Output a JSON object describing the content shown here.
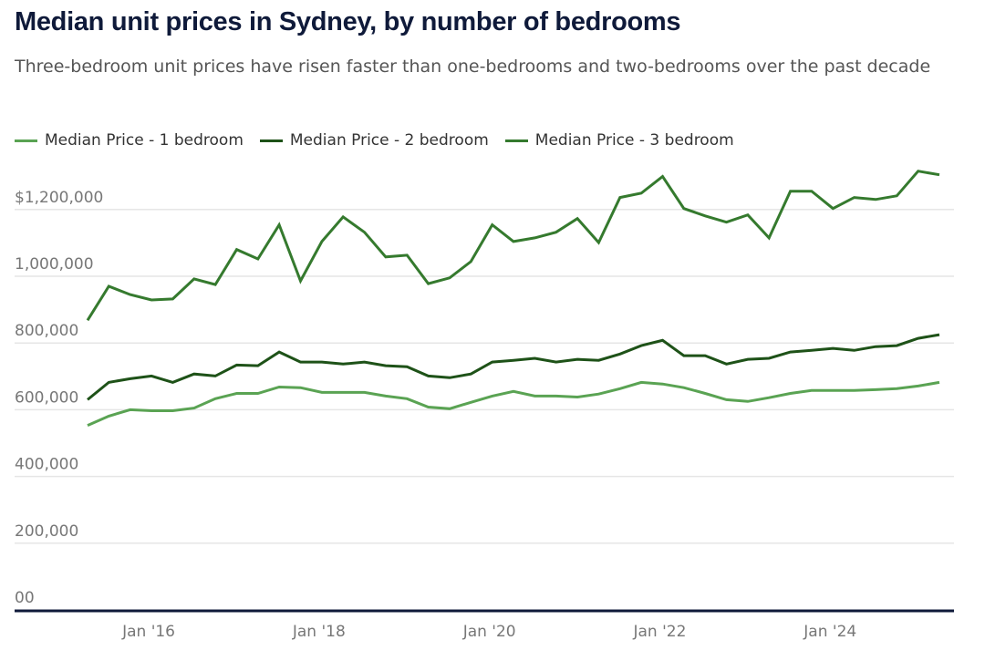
{
  "title": "Median unit prices in Sydney, by number of bedrooms",
  "subtitle": "Three-bedroom unit prices have risen faster than one-bedrooms and two-bedrooms over the past decade",
  "colors": {
    "one_bed": "#5aa353",
    "two_bed": "#1e5218",
    "three_bed": "#357a2e",
    "axis": "#0f1a3a",
    "grid": "#e6e6e6"
  },
  "legend": [
    {
      "label": "Median Price - 1 bedroom",
      "color": "#5aa353"
    },
    {
      "label": "Median Price - 2 bedroom",
      "color": "#1e5218"
    },
    {
      "label": "Median Price - 3 bedroom",
      "color": "#357a2e"
    }
  ],
  "chart_data": {
    "type": "line",
    "title": "Median unit prices in Sydney, by number of bedrooms",
    "subtitle": "Three-bedroom unit prices have risen faster than one-bedrooms and two-bedrooms over the past decade",
    "xlabel": "",
    "ylabel": "",
    "ylim": [
      0,
      1300000
    ],
    "grid": true,
    "legend_position": "top-left",
    "yticks": [
      0,
      200000,
      400000,
      600000,
      800000,
      1000000,
      1200000
    ],
    "ytick_labels": [
      "00",
      "200,000",
      "400,000",
      "600,000",
      "800,000",
      "1,000,000",
      "$1,200,000"
    ],
    "xticks": [
      {
        "label": "Jan '16",
        "index": 3
      },
      {
        "label": "Jan '18",
        "index": 11
      },
      {
        "label": "Jan '20",
        "index": 19
      },
      {
        "label": "Jan '22",
        "index": 27
      },
      {
        "label": "Jan '24",
        "index": 35
      }
    ],
    "x": [
      "Apr 2015",
      "Jul 2015",
      "Oct 2015",
      "Jan 2016",
      "Apr 2016",
      "Jul 2016",
      "Oct 2016",
      "Jan 2017",
      "Apr 2017",
      "Jul 2017",
      "Oct 2017",
      "Jan 2018",
      "Apr 2018",
      "Jul 2018",
      "Oct 2018",
      "Jan 2019",
      "Apr 2019",
      "Jul 2019",
      "Oct 2019",
      "Jan 2020",
      "Apr 2020",
      "Jul 2020",
      "Oct 2020",
      "Jan 2021",
      "Apr 2021",
      "Jul 2021",
      "Oct 2021",
      "Jan 2022",
      "Apr 2022",
      "Jul 2022",
      "Oct 2022",
      "Jan 2023",
      "Apr 2023",
      "Jul 2023",
      "Oct 2023",
      "Jan 2024",
      "Apr 2024",
      "Jul 2024",
      "Oct 2024",
      "Jan 2025",
      "Apr 2025"
    ],
    "series": [
      {
        "name": "Median Price - 1 bedroom",
        "color": "#5aa353",
        "values": [
          553000,
          581000,
          600000,
          597000,
          597000,
          605000,
          633000,
          649000,
          649000,
          668000,
          666000,
          652000,
          652000,
          652000,
          641000,
          633000,
          608000,
          603000,
          622000,
          641000,
          655000,
          641000,
          641000,
          638000,
          647000,
          663000,
          682000,
          677000,
          666000,
          649000,
          630000,
          625000,
          636000,
          649000,
          658000,
          658000,
          658000,
          660000,
          663000,
          671000,
          682000
        ]
      },
      {
        "name": "Median Price - 2 bedroom",
        "color": "#1e5218",
        "values": [
          630000,
          682000,
          693000,
          701000,
          682000,
          707000,
          701000,
          734000,
          732000,
          773000,
          743000,
          743000,
          737000,
          743000,
          732000,
          729000,
          701000,
          696000,
          707000,
          743000,
          748000,
          754000,
          743000,
          751000,
          748000,
          767000,
          792000,
          808000,
          762000,
          762000,
          737000,
          751000,
          754000,
          773000,
          778000,
          784000,
          778000,
          789000,
          792000,
          814000,
          825000
        ]
      },
      {
        "name": "Median Price - 3 bedroom",
        "color": "#357a2e",
        "values": [
          868000,
          970000,
          945000,
          929000,
          932000,
          992000,
          975000,
          1080000,
          1052000,
          1154000,
          986000,
          1104000,
          1178000,
          1132000,
          1058000,
          1063000,
          978000,
          995000,
          1044000,
          1154000,
          1104000,
          1115000,
          1132000,
          1173000,
          1101000,
          1236000,
          1249000,
          1299000,
          1203000,
          1181000,
          1162000,
          1184000,
          1115000,
          1255000,
          1255000,
          1203000,
          1236000,
          1230000,
          1241000,
          1315000,
          1304000
        ]
      }
    ]
  }
}
